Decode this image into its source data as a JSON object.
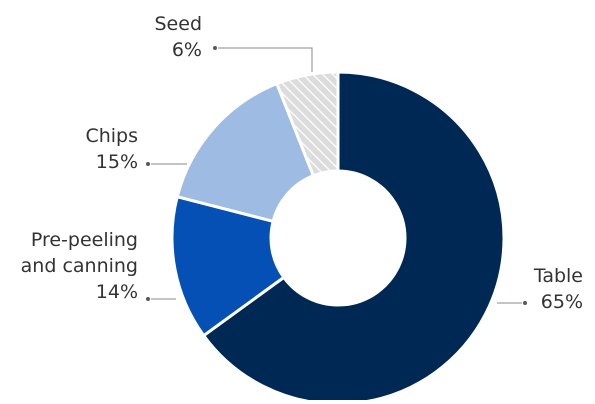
{
  "chart_data": {
    "type": "pie",
    "variant": "donut",
    "title": "",
    "slices": [
      {
        "name": "Table",
        "label_lines": [
          "Table"
        ],
        "value": 65,
        "value_label": "65%",
        "color": "#002855",
        "pattern": "none"
      },
      {
        "name": "Pre-peeling and canning",
        "label_lines": [
          "Pre-peeling",
          "and canning"
        ],
        "value": 14,
        "value_label": "14%",
        "color": "#0450b4",
        "pattern": "none"
      },
      {
        "name": "Chips",
        "label_lines": [
          "Chips"
        ],
        "value": 15,
        "value_label": "15%",
        "color": "#9dbbe3",
        "pattern": "none"
      },
      {
        "name": "Seed",
        "label_lines": [
          "Seed"
        ],
        "value": 6,
        "value_label": "6%",
        "color": "#d9d9d9",
        "pattern": "diagonal-hatch"
      }
    ],
    "start": "12 o'clock",
    "direction": "clockwise",
    "legend": "none (callout labels beside slices)"
  }
}
